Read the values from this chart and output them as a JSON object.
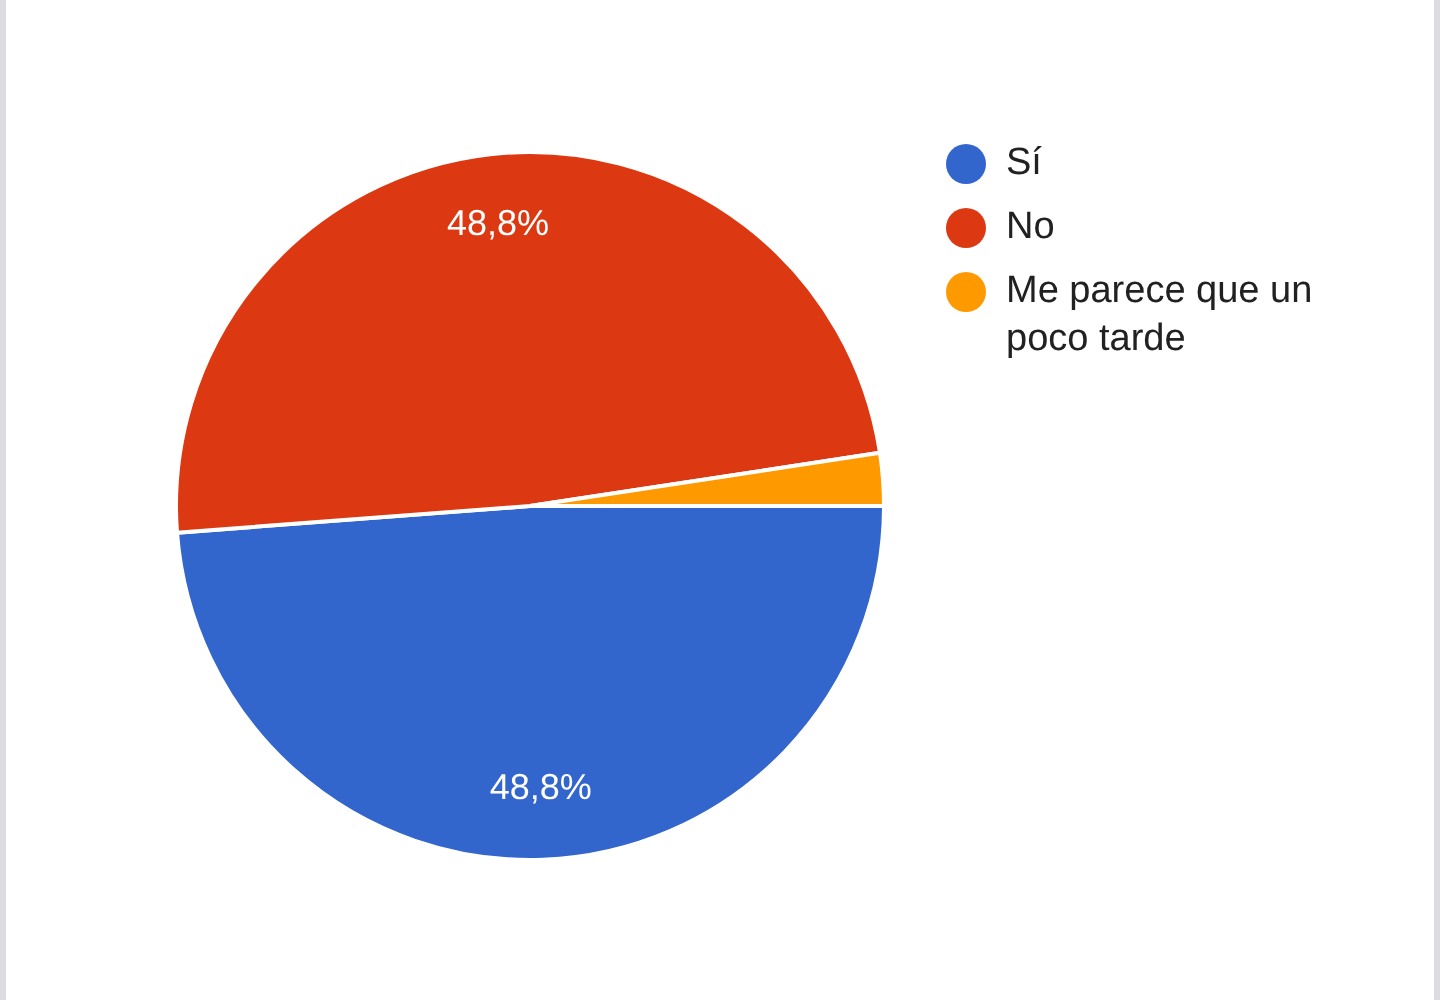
{
  "chart_data": {
    "type": "pie",
    "categories": [
      "Sí",
      "No",
      "Me parece que un poco tarde"
    ],
    "values": [
      48.8,
      48.8,
      2.4
    ],
    "colors": [
      "#3366cc",
      "#dc3912",
      "#ff9900"
    ],
    "value_labels": [
      "48,8%",
      "48,8%",
      null
    ],
    "legend": "right"
  }
}
